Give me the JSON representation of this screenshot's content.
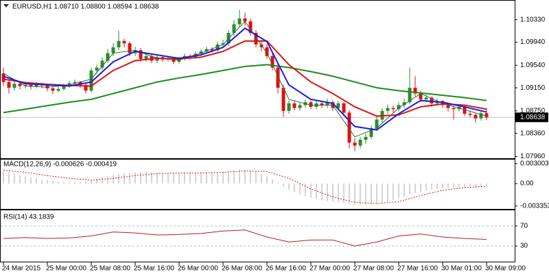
{
  "chart_data": [
    {
      "type": "candlestick",
      "title": "EURUSD,H1 1.08710 1.08800 1.08594 1.08638",
      "categories": [
        "24 Mar 2015",
        null,
        null,
        null,
        null,
        null,
        null,
        null,
        "25 Mar 00:00",
        null,
        null,
        null,
        null,
        null,
        null,
        null,
        "25 Mar 08:00",
        null,
        null,
        null,
        null,
        null,
        null,
        null,
        "25 Mar 16:00",
        null,
        null,
        null,
        null,
        null,
        null,
        null,
        "26 Mar 00:00",
        null,
        null,
        null,
        null,
        null,
        null,
        null,
        "26 Mar 08:00",
        null,
        null,
        null,
        null,
        null,
        null,
        null,
        "26 Mar 16:00",
        null,
        null,
        null,
        null,
        null,
        null,
        null,
        "27 Mar 00:00",
        null,
        null,
        null,
        null,
        null,
        null,
        null,
        "27 Mar 08:00",
        null,
        null,
        null,
        null,
        null,
        null,
        null,
        "27 Mar 16:00",
        null,
        null,
        null,
        null,
        null,
        null,
        null,
        "30 Mar 01:00",
        null,
        null,
        null,
        null,
        null,
        null,
        null,
        "30 Mar 09:00"
      ],
      "candles": [
        [
          1.094,
          1.095,
          1.0918,
          1.0925
        ],
        [
          1.0925,
          1.093,
          1.0905,
          1.0915
        ],
        [
          1.0915,
          1.0928,
          1.091,
          1.0922
        ],
        [
          1.0922,
          1.0926,
          1.0912,
          1.0918
        ],
        [
          1.0918,
          1.0925,
          1.0914,
          1.092
        ],
        [
          1.092,
          1.0923,
          1.0912,
          1.0917
        ],
        [
          1.0917,
          1.0925,
          1.0915,
          1.0921
        ],
        [
          1.0921,
          1.0924,
          1.0914,
          1.0919
        ],
        [
          1.0919,
          1.0922,
          1.0909,
          1.0914
        ],
        [
          1.0914,
          1.0917,
          1.0904,
          1.091
        ],
        [
          1.091,
          1.0918,
          1.0907,
          1.0913
        ],
        [
          1.0913,
          1.0922,
          1.091,
          1.0918
        ],
        [
          1.0918,
          1.0927,
          1.0915,
          1.0923
        ],
        [
          1.0923,
          1.0929,
          1.0918,
          1.0925
        ],
        [
          1.0925,
          1.0927,
          1.0915,
          1.092
        ],
        [
          1.092,
          1.0923,
          1.0905,
          1.091
        ],
        [
          1.091,
          1.095,
          1.0907,
          1.0945
        ],
        [
          1.0945,
          1.0955,
          1.094,
          1.095
        ],
        [
          1.095,
          1.0968,
          1.0946,
          1.0962
        ],
        [
          1.0962,
          1.0982,
          1.0958,
          1.0975
        ],
        [
          1.0975,
          1.0992,
          1.097,
          1.0985
        ],
        [
          1.0985,
          1.1014,
          1.098,
          1.0996
        ],
        [
          1.0996,
          1.1,
          1.0985,
          1.0992
        ],
        [
          1.0992,
          1.0995,
          1.097,
          1.0975
        ],
        [
          1.0975,
          1.0986,
          1.097,
          1.098
        ],
        [
          1.098,
          1.0984,
          1.096,
          1.0965
        ],
        [
          1.0965,
          1.0975,
          1.096,
          1.097
        ],
        [
          1.097,
          1.0973,
          1.0958,
          1.0962
        ],
        [
          1.0962,
          1.0972,
          1.0958,
          1.0968
        ],
        [
          1.0968,
          1.0971,
          1.096,
          1.0964
        ],
        [
          1.0964,
          1.097,
          1.096,
          1.0966
        ],
        [
          1.0966,
          1.0968,
          1.0956,
          1.096
        ],
        [
          1.096,
          1.0969,
          1.0957,
          1.0965
        ],
        [
          1.0965,
          1.0974,
          1.0962,
          1.097
        ],
        [
          1.097,
          1.0973,
          1.0964,
          1.0968
        ],
        [
          1.0968,
          1.0978,
          1.0965,
          1.0974
        ],
        [
          1.0974,
          1.0982,
          1.097,
          1.0978
        ],
        [
          1.0978,
          1.0986,
          1.0975,
          1.0982
        ],
        [
          1.0982,
          1.0985,
          1.0976,
          1.098
        ],
        [
          1.098,
          1.0995,
          1.0977,
          1.099
        ],
        [
          1.099,
          1.0998,
          1.0985,
          1.0992
        ],
        [
          1.0992,
          1.1015,
          1.0988,
          1.101
        ],
        [
          1.101,
          1.1032,
          1.1005,
          1.1025
        ],
        [
          1.1025,
          1.105,
          1.102,
          1.1035
        ],
        [
          1.1035,
          1.1045,
          1.1022,
          1.103
        ],
        [
          1.103,
          1.1035,
          1.1005,
          1.101
        ],
        [
          1.101,
          1.1015,
          1.0985,
          1.099
        ],
        [
          1.099,
          1.0998,
          1.0978,
          1.0985
        ],
        [
          1.0985,
          1.099,
          1.0965,
          1.097
        ],
        [
          1.097,
          1.0975,
          1.0945,
          1.095
        ],
        [
          1.095,
          1.0955,
          1.0905,
          1.0915
        ],
        [
          1.0915,
          1.092,
          1.0865,
          1.0875
        ],
        [
          1.0875,
          1.0893,
          1.087,
          1.0888
        ],
        [
          1.0888,
          1.0892,
          1.0876,
          1.088
        ],
        [
          1.088,
          1.089,
          1.0875,
          1.0885
        ],
        [
          1.0885,
          1.0895,
          1.088,
          1.089
        ],
        [
          1.089,
          1.0893,
          1.0878,
          1.0882
        ],
        [
          1.0882,
          1.0893,
          1.0878,
          1.0888
        ],
        [
          1.0888,
          1.0891,
          1.088,
          1.0885
        ],
        [
          1.0885,
          1.0896,
          1.088,
          1.089
        ],
        [
          1.089,
          1.0893,
          1.0875,
          1.088
        ],
        [
          1.088,
          1.0892,
          1.0876,
          1.0888
        ],
        [
          1.0888,
          1.089,
          1.0866,
          1.0872
        ],
        [
          1.0872,
          1.0876,
          1.081,
          1.082
        ],
        [
          1.082,
          1.0828,
          1.0805,
          1.0815
        ],
        [
          1.0815,
          1.083,
          1.081,
          1.0825
        ],
        [
          1.0825,
          1.0836,
          1.0818,
          1.083
        ],
        [
          1.083,
          1.085,
          1.0826,
          1.0845
        ],
        [
          1.0845,
          1.0866,
          1.084,
          1.086
        ],
        [
          1.086,
          1.088,
          1.0855,
          1.0875
        ],
        [
          1.0875,
          1.0886,
          1.087,
          1.088
        ],
        [
          1.088,
          1.0884,
          1.0872,
          1.0878
        ],
        [
          1.0878,
          1.089,
          1.0874,
          1.0885
        ],
        [
          1.0885,
          1.0896,
          1.088,
          1.089
        ],
        [
          1.089,
          1.095,
          1.0886,
          1.0915
        ],
        [
          1.0915,
          1.0935,
          1.09,
          1.0905
        ],
        [
          1.0905,
          1.091,
          1.089,
          1.0895
        ],
        [
          1.0895,
          1.0903,
          1.089,
          1.0898
        ],
        [
          1.0898,
          1.09,
          1.0882,
          1.0888
        ],
        [
          1.0888,
          1.0896,
          1.0884,
          1.0892
        ],
        [
          1.0892,
          1.0894,
          1.088,
          1.0885
        ],
        [
          1.0885,
          1.0889,
          1.0874,
          1.088
        ],
        [
          1.088,
          1.0884,
          1.086,
          1.0878
        ],
        [
          1.0878,
          1.0886,
          1.0874,
          1.0882
        ],
        [
          1.0882,
          1.0884,
          1.0866,
          1.087
        ],
        [
          1.087,
          1.0876,
          1.0864,
          1.0868
        ],
        [
          1.0868,
          1.0872,
          1.0855,
          1.0862
        ],
        [
          1.0862,
          1.0875,
          1.0858,
          1.0871
        ],
        [
          1.0871,
          1.088,
          1.08594,
          1.08638
        ]
      ],
      "up_color": "#2e8b2e",
      "down_color": "#e01010",
      "lines": [
        {
          "color": "#2a6e2a",
          "width": 1,
          "x": [
            0,
            4,
            8,
            12,
            16,
            20,
            24,
            28,
            32,
            36,
            40,
            44,
            48,
            52,
            56,
            60,
            64,
            68,
            72,
            76,
            80,
            84,
            88
          ],
          "values": [
            1.094,
            1.0918,
            1.0916,
            1.092,
            1.093,
            1.0975,
            1.098,
            1.0966,
            1.0963,
            1.0975,
            1.099,
            1.103,
            1.0975,
            1.0895,
            1.0885,
            1.0885,
            1.083,
            1.0845,
            1.088,
            1.0905,
            1.0888,
            1.0877,
            1.0866
          ]
        },
        {
          "color": "#1a8c1a",
          "width": 2,
          "x": [
            0,
            4,
            8,
            12,
            16,
            20,
            24,
            28,
            32,
            36,
            40,
            44,
            48,
            52,
            56,
            60,
            64,
            68,
            72,
            76,
            80,
            84,
            88
          ],
          "values": [
            1.0872,
            1.0878,
            1.0884,
            1.089,
            1.0895,
            1.0905,
            1.0915,
            1.0925,
            1.0932,
            1.0938,
            1.0945,
            1.0952,
            1.0955,
            1.095,
            1.0943,
            1.0935,
            1.0925,
            1.0915,
            1.091,
            1.0906,
            1.0902,
            1.0898,
            1.0893
          ]
        },
        {
          "color": "#e01010",
          "width": 2,
          "x": [
            0,
            4,
            8,
            12,
            16,
            20,
            24,
            28,
            32,
            36,
            40,
            44,
            48,
            52,
            56,
            60,
            64,
            68,
            72,
            76,
            80,
            84,
            88
          ],
          "values": [
            1.093,
            1.0924,
            1.0921,
            1.0919,
            1.0918,
            1.0945,
            1.0962,
            1.0966,
            1.0965,
            1.0968,
            1.0978,
            1.0996,
            1.0996,
            1.0955,
            1.0925,
            1.0905,
            1.0882,
            1.0866,
            1.0868,
            1.0882,
            1.0887,
            1.0885,
            1.0878
          ]
        },
        {
          "color": "#1a1ae6",
          "width": 2,
          "x": [
            0,
            4,
            8,
            12,
            16,
            20,
            24,
            28,
            32,
            36,
            40,
            44,
            48,
            52,
            56,
            60,
            64,
            68,
            72,
            76,
            80,
            84,
            88
          ],
          "values": [
            1.0935,
            1.0922,
            1.092,
            1.0918,
            1.0925,
            1.096,
            1.0978,
            1.0972,
            1.0966,
            1.0972,
            1.0985,
            1.1018,
            1.0995,
            1.092,
            1.0895,
            1.0888,
            1.0848,
            1.0842,
            1.087,
            1.0893,
            1.089,
            1.0882,
            1.0873
          ]
        }
      ],
      "ylim": [
        1.0793,
        1.1067
      ],
      "yticks": [
        {
          "value": 1.1033,
          "label": "1.10330"
        },
        {
          "value": 1.0994,
          "label": "1.09940"
        },
        {
          "value": 1.0954,
          "label": "1.09540"
        },
        {
          "value": 1.0915,
          "label": "1.09150"
        },
        {
          "value": 1.0875,
          "label": "1.08750"
        },
        {
          "value": 1.0836,
          "label": "1.08360"
        },
        {
          "value": 1.0796,
          "label": "1.07960"
        }
      ],
      "last_price": {
        "value": 1.08638,
        "label": "1.08638"
      }
    },
    {
      "type": "macd",
      "title": "MACD(12,26,9) -0.000626 -0.000419",
      "color": "#a8a8a8",
      "values": [
        0.0018,
        0.0017,
        0.0015,
        0.0013,
        0.0011,
        0.0009,
        0.0008,
        0.0006,
        0.0005,
        0.0004,
        0.0003,
        0.0003,
        0.0002,
        0.0002,
        0.0002,
        0.0003,
        0.0005,
        0.0007,
        0.0009,
        0.0011,
        0.0013,
        0.0014,
        0.0015,
        0.0016,
        0.0017,
        0.0017,
        0.0017,
        0.0017,
        0.0016,
        0.0016,
        0.0016,
        0.0016,
        0.0016,
        0.0017,
        0.0017,
        0.0017,
        0.0017,
        0.0017,
        0.0017,
        0.0017,
        0.0018,
        0.0019,
        0.002,
        0.0021,
        0.0021,
        0.002,
        0.0018,
        0.0015,
        0.0011,
        0.0006,
        0.0001,
        -0.0004,
        -0.0009,
        -0.0013,
        -0.0016,
        -0.0019,
        -0.0021,
        -0.0023,
        -0.0025,
        -0.0026,
        -0.0027,
        -0.0028,
        -0.0029,
        -0.0031,
        -0.0032,
        -0.0032,
        -0.0032,
        -0.0031,
        -0.003,
        -0.0029,
        -0.0027,
        -0.0025,
        -0.0022,
        -0.0019,
        -0.0016,
        -0.0014,
        -0.0012,
        -0.001,
        -0.0009,
        -0.0008,
        -0.0007,
        -0.0006,
        -0.0006,
        -0.0006,
        -0.0006,
        -0.0006,
        -0.0006,
        -0.0006,
        -0.000626
      ],
      "signal": {
        "color": "#e01010",
        "x": [
          0,
          4,
          8,
          12,
          16,
          20,
          24,
          28,
          32,
          36,
          40,
          44,
          48,
          52,
          56,
          60,
          64,
          68,
          72,
          76,
          80,
          84,
          88
        ],
        "values": [
          0.002,
          0.0017,
          0.0012,
          0.0008,
          0.0005,
          0.0008,
          0.0012,
          0.0015,
          0.0016,
          0.0016,
          0.0017,
          0.0019,
          0.0018,
          0.0008,
          -0.0008,
          -0.002,
          -0.0028,
          -0.003,
          -0.0027,
          -0.0018,
          -0.001,
          -0.0006,
          -0.000419
        ]
      },
      "ylim": [
        -0.0038,
        0.0036
      ],
      "yticks": [
        0.003003,
        {
          "value": 0,
          "label": "0.00"
        },
        -0.003353
      ]
    },
    {
      "type": "rsi",
      "title": "RSI(14) 43.1839",
      "series": [
        {
          "color": "#c01818",
          "x": [
            0,
            4,
            8,
            12,
            16,
            20,
            24,
            28,
            32,
            36,
            40,
            44,
            48,
            52,
            56,
            60,
            64,
            68,
            72,
            76,
            80,
            84,
            88
          ],
          "values": [
            45,
            47,
            45,
            46,
            50,
            58,
            56,
            52,
            53,
            55,
            60,
            62,
            48,
            38,
            42,
            42,
            30,
            38,
            50,
            54,
            48,
            45,
            43.1839
          ]
        }
      ],
      "ylim": [
        0,
        100
      ],
      "yticks": [
        30,
        70
      ]
    }
  ]
}
